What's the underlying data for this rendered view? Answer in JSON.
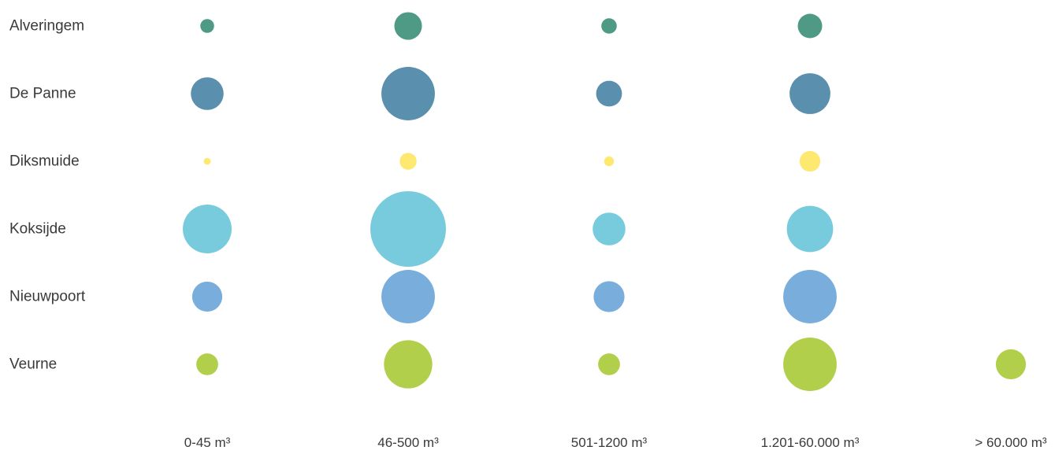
{
  "chart_data": {
    "type": "bubble",
    "title": "",
    "xlabel": "",
    "ylabel": "",
    "categories": [
      "0-45 m³",
      "46-500 m³",
      "501-1200 m³",
      "1.201-60.000 m³",
      "> 60.000 m³"
    ],
    "series": [
      {
        "name": "Alveringem",
        "color": "#4e9a85",
        "values": [
          8,
          32,
          10,
          25,
          0
        ]
      },
      {
        "name": "De Panne",
        "color": "#5b8fae",
        "values": [
          45,
          120,
          28,
          70,
          0
        ]
      },
      {
        "name": "Diksmuide",
        "color": "#fde970",
        "values": [
          2,
          12,
          4,
          18,
          0
        ]
      },
      {
        "name": "Koksijde",
        "color": "#78cbdc",
        "values": [
          100,
          240,
          45,
          90,
          0
        ]
      },
      {
        "name": "Nieuwpoort",
        "color": "#79aedc",
        "values": [
          38,
          120,
          40,
          120,
          0
        ]
      },
      {
        "name": "Veurne",
        "color": "#b2cf4b",
        "values": [
          20,
          98,
          20,
          120,
          38
        ]
      }
    ],
    "legend": "none",
    "grid": false
  }
}
